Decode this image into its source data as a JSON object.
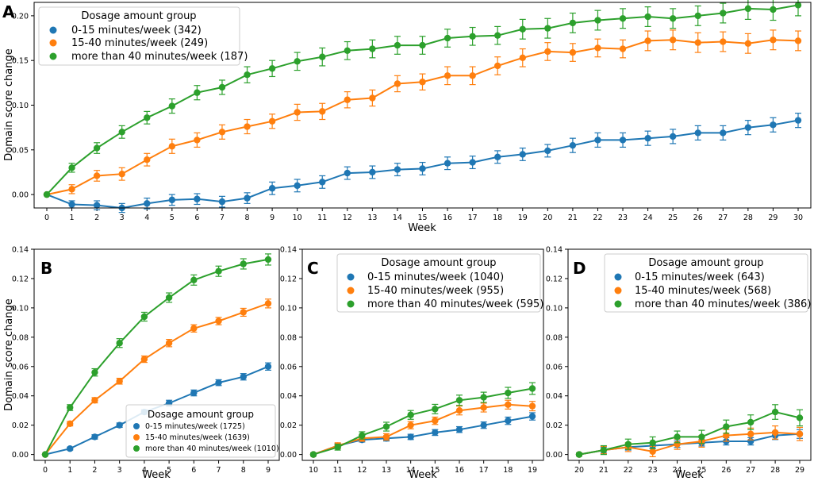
{
  "figure_title": "",
  "colors": {
    "s1": "#1f77b4",
    "s2": "#ff7f0e",
    "s3": "#2ca02c"
  },
  "chart_data": [
    {
      "panel": "A",
      "type": "line",
      "xlabel": "Week",
      "ylabel": "Domain score change",
      "xlim": [
        0,
        30
      ],
      "ylim": [
        -0.015,
        0.215
      ],
      "xticks": [
        0,
        1,
        2,
        3,
        4,
        5,
        6,
        7,
        8,
        9,
        10,
        11,
        12,
        13,
        14,
        15,
        16,
        17,
        18,
        19,
        20,
        21,
        22,
        23,
        24,
        25,
        26,
        27,
        28,
        29,
        30
      ],
      "yticks": [
        0.0,
        0.05,
        0.1,
        0.15,
        0.2
      ],
      "ytick_labels": [
        "0.00",
        "0.05",
        "0.10",
        "0.15",
        "0.20"
      ],
      "legend_title": "Dosage amount group",
      "legend_position": "top-left",
      "x": [
        0,
        1,
        2,
        3,
        4,
        5,
        6,
        7,
        8,
        9,
        10,
        11,
        12,
        13,
        14,
        15,
        16,
        17,
        18,
        19,
        20,
        21,
        22,
        23,
        24,
        25,
        26,
        27,
        28,
        29,
        30
      ],
      "series": [
        {
          "name": "0-15 minutes/week (342)",
          "color": "#1f77b4",
          "values": [
            0.0,
            -0.011,
            -0.012,
            -0.015,
            -0.01,
            -0.006,
            -0.005,
            -0.008,
            -0.004,
            0.007,
            0.01,
            0.014,
            0.024,
            0.025,
            0.028,
            0.029,
            0.035,
            0.036,
            0.042,
            0.045,
            0.049,
            0.055,
            0.061,
            0.061,
            0.063,
            0.065,
            0.069,
            0.069,
            0.075,
            0.078,
            0.083
          ],
          "errors": [
            0.001,
            0.004,
            0.005,
            0.005,
            0.006,
            0.006,
            0.006,
            0.006,
            0.006,
            0.007,
            0.007,
            0.007,
            0.007,
            0.007,
            0.007,
            0.007,
            0.007,
            0.007,
            0.007,
            0.007,
            0.007,
            0.008,
            0.008,
            0.008,
            0.008,
            0.008,
            0.008,
            0.008,
            0.008,
            0.008,
            0.008
          ]
        },
        {
          "name": "15-40 minutes/week (249)",
          "color": "#ff7f0e",
          "values": [
            0.0,
            0.006,
            0.021,
            0.023,
            0.039,
            0.054,
            0.061,
            0.07,
            0.076,
            0.082,
            0.092,
            0.093,
            0.106,
            0.108,
            0.124,
            0.126,
            0.133,
            0.133,
            0.144,
            0.153,
            0.16,
            0.159,
            0.164,
            0.163,
            0.172,
            0.173,
            0.17,
            0.171,
            0.169,
            0.173,
            0.172
          ],
          "errors": [
            0.001,
            0.005,
            0.006,
            0.007,
            0.007,
            0.008,
            0.008,
            0.008,
            0.008,
            0.008,
            0.009,
            0.009,
            0.009,
            0.009,
            0.009,
            0.009,
            0.01,
            0.01,
            0.01,
            0.01,
            0.01,
            0.01,
            0.01,
            0.01,
            0.011,
            0.011,
            0.011,
            0.011,
            0.011,
            0.011,
            0.011
          ]
        },
        {
          "name": "more than 40 minutes/week (187)",
          "color": "#2ca02c",
          "values": [
            0.0,
            0.03,
            0.052,
            0.07,
            0.086,
            0.099,
            0.114,
            0.12,
            0.134,
            0.141,
            0.149,
            0.154,
            0.161,
            0.163,
            0.167,
            0.167,
            0.175,
            0.177,
            0.178,
            0.185,
            0.186,
            0.192,
            0.195,
            0.197,
            0.199,
            0.197,
            0.2,
            0.203,
            0.208,
            0.207,
            0.212
          ],
          "errors": [
            0.001,
            0.005,
            0.006,
            0.007,
            0.007,
            0.008,
            0.008,
            0.008,
            0.009,
            0.009,
            0.01,
            0.01,
            0.01,
            0.01,
            0.01,
            0.01,
            0.01,
            0.01,
            0.01,
            0.011,
            0.011,
            0.011,
            0.011,
            0.011,
            0.011,
            0.011,
            0.011,
            0.011,
            0.012,
            0.012,
            0.012
          ]
        }
      ]
    },
    {
      "panel": "B",
      "type": "line",
      "xlabel": "Week",
      "ylabel": "Domain score change",
      "xlim": [
        0,
        9
      ],
      "ylim": [
        -0.004,
        0.14
      ],
      "xticks": [
        0,
        1,
        2,
        3,
        4,
        5,
        6,
        7,
        8,
        9
      ],
      "yticks": [
        0.0,
        0.02,
        0.04,
        0.06,
        0.08,
        0.1,
        0.12,
        0.14
      ],
      "ytick_labels": [
        "0.00",
        "0.02",
        "0.04",
        "0.06",
        "0.08",
        "0.10",
        "0.12",
        "0.14"
      ],
      "legend_title": "Dosage amount group",
      "legend_position": "bottom-right",
      "x": [
        0,
        1,
        2,
        3,
        4,
        5,
        6,
        7,
        8,
        9
      ],
      "series": [
        {
          "name": "0-15 minutes/week (1725)",
          "color": "#1f77b4",
          "values": [
            0.0,
            0.004,
            0.012,
            0.02,
            0.029,
            0.035,
            0.042,
            0.049,
            0.053,
            0.06
          ],
          "errors": [
            0.0005,
            0.001,
            0.0015,
            0.0015,
            0.0015,
            0.002,
            0.002,
            0.002,
            0.0022,
            0.0025
          ]
        },
        {
          "name": "15-40 minutes/week (1639)",
          "color": "#ff7f0e",
          "values": [
            0.0,
            0.021,
            0.037,
            0.05,
            0.065,
            0.076,
            0.086,
            0.091,
            0.097,
            0.103
          ],
          "errors": [
            0.0005,
            0.0015,
            0.0018,
            0.002,
            0.0022,
            0.0025,
            0.0025,
            0.0025,
            0.0027,
            0.003
          ]
        },
        {
          "name": "more than 40 minutes/week (1010)",
          "color": "#2ca02c",
          "values": [
            0.0,
            0.032,
            0.056,
            0.076,
            0.094,
            0.107,
            0.119,
            0.125,
            0.13,
            0.133
          ],
          "errors": [
            0.0005,
            0.002,
            0.0025,
            0.003,
            0.003,
            0.0032,
            0.0035,
            0.0035,
            0.0035,
            0.0038
          ]
        }
      ]
    },
    {
      "panel": "C",
      "type": "line",
      "xlabel": "Week",
      "ylabel": "",
      "xlim": [
        10,
        19
      ],
      "ylim": [
        -0.004,
        0.14
      ],
      "xticks": [
        10,
        11,
        12,
        13,
        14,
        15,
        16,
        17,
        18,
        19
      ],
      "yticks": [
        0.0,
        0.02,
        0.04,
        0.06,
        0.08,
        0.1,
        0.12,
        0.14
      ],
      "ytick_labels": [
        "0.00",
        "0.02",
        "0.04",
        "0.06",
        "0.08",
        "0.10",
        "0.12",
        "0.14"
      ],
      "legend_title": "Dosage amount group",
      "legend_position": "top-right",
      "x": [
        10,
        11,
        12,
        13,
        14,
        15,
        16,
        17,
        18,
        19
      ],
      "series": [
        {
          "name": "0-15 minutes/week (1040)",
          "color": "#1f77b4",
          "values": [
            0.0,
            0.006,
            0.01,
            0.011,
            0.012,
            0.015,
            0.017,
            0.02,
            0.023,
            0.026
          ],
          "errors": [
            0.001,
            0.0015,
            0.0015,
            0.0018,
            0.0018,
            0.002,
            0.002,
            0.0022,
            0.0025,
            0.0025
          ]
        },
        {
          "name": "15-40 minutes/week (955)",
          "color": "#ff7f0e",
          "values": [
            0.0,
            0.006,
            0.011,
            0.012,
            0.02,
            0.023,
            0.03,
            0.032,
            0.034,
            0.033
          ],
          "errors": [
            0.001,
            0.002,
            0.002,
            0.0022,
            0.0025,
            0.0025,
            0.003,
            0.003,
            0.003,
            0.0032
          ]
        },
        {
          "name": "more than 40 minutes/week (595)",
          "color": "#2ca02c",
          "values": [
            0.0,
            0.005,
            0.013,
            0.019,
            0.027,
            0.031,
            0.037,
            0.039,
            0.042,
            0.045
          ],
          "errors": [
            0.001,
            0.002,
            0.0025,
            0.003,
            0.003,
            0.0032,
            0.0035,
            0.0035,
            0.0038,
            0.004
          ]
        }
      ]
    },
    {
      "panel": "D",
      "type": "line",
      "xlabel": "Week",
      "ylabel": "",
      "xlim": [
        20,
        29
      ],
      "ylim": [
        -0.004,
        0.14
      ],
      "xticks": [
        20,
        21,
        22,
        23,
        24,
        25,
        26,
        27,
        28,
        29
      ],
      "yticks": [
        0.0,
        0.02,
        0.04,
        0.06,
        0.08,
        0.1,
        0.12,
        0.14
      ],
      "ytick_labels": [
        "0.00",
        "0.02",
        "0.04",
        "0.06",
        "0.08",
        "0.10",
        "0.12",
        "0.14"
      ],
      "legend_title": "Dosage amount group",
      "legend_position": "top-right",
      "x": [
        20,
        21,
        22,
        23,
        24,
        25,
        26,
        27,
        28,
        29
      ],
      "series": [
        {
          "name": "0-15 minutes/week (643)",
          "color": "#1f77b4",
          "values": [
            0.0,
            0.003,
            0.005,
            0.006,
            0.007,
            0.008,
            0.009,
            0.009,
            0.013,
            0.014
          ],
          "errors": [
            0.001,
            0.002,
            0.002,
            0.002,
            0.0022,
            0.0022,
            0.0025,
            0.0025,
            0.0028,
            0.003
          ]
        },
        {
          "name": "15-40 minutes/week (568)",
          "color": "#ff7f0e",
          "values": [
            0.0,
            0.003,
            0.005,
            0.002,
            0.007,
            0.009,
            0.013,
            0.014,
            0.015,
            0.014
          ],
          "errors": [
            0.001,
            0.0025,
            0.003,
            0.0035,
            0.0035,
            0.004,
            0.004,
            0.004,
            0.0045,
            0.0045
          ]
        },
        {
          "name": "more than 40 minutes/week (386)",
          "color": "#2ca02c",
          "values": [
            0.0,
            0.003,
            0.007,
            0.008,
            0.012,
            0.012,
            0.019,
            0.022,
            0.029,
            0.025
          ],
          "errors": [
            0.001,
            0.003,
            0.0035,
            0.004,
            0.004,
            0.0045,
            0.0045,
            0.005,
            0.005,
            0.0055
          ]
        }
      ]
    }
  ]
}
